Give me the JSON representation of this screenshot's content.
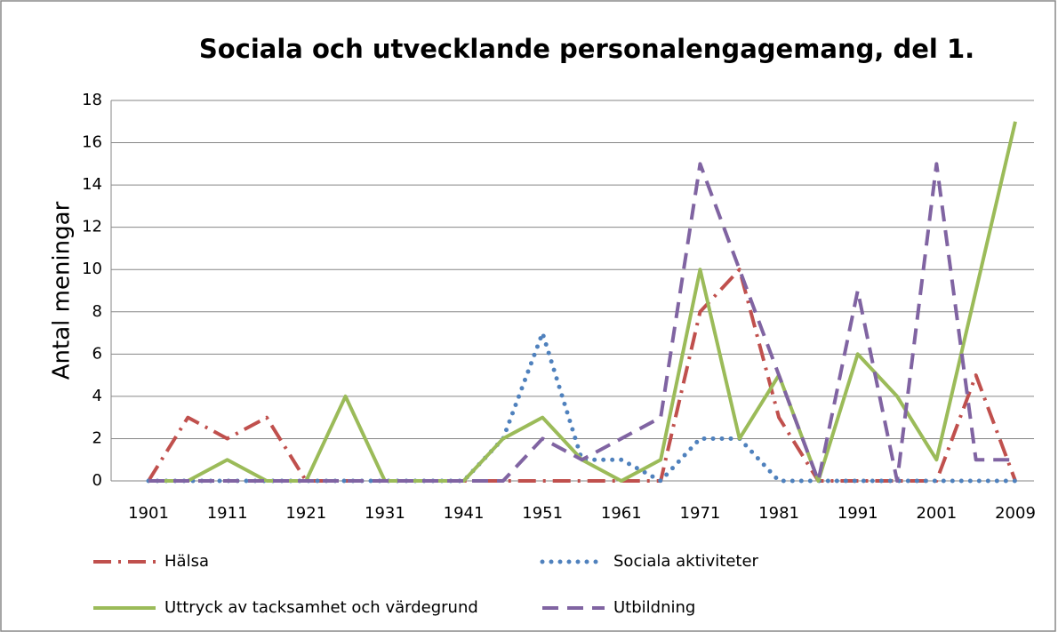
{
  "chart_data": {
    "type": "line",
    "title": "Sociala och utvecklande personalengagemang, del 1.",
    "y_label": "Antal meningar",
    "categories": [
      "1901",
      null,
      "1911",
      null,
      "1921",
      null,
      "1931",
      null,
      "1941",
      null,
      "1951",
      null,
      "1961",
      null,
      "1971",
      null,
      "1981",
      null,
      "1991",
      null,
      "2001",
      null,
      "2009"
    ],
    "series": [
      {
        "name": "Hälsa",
        "color": "#c0504d",
        "dash": "dash-dot",
        "values": [
          0,
          3,
          2,
          3,
          0,
          0,
          0,
          0,
          0,
          0,
          0,
          0,
          0,
          0,
          8,
          10,
          3,
          0,
          0,
          0,
          0,
          5,
          0
        ]
      },
      {
        "name": "Sociala aktiviteter",
        "color": "#4f81bd",
        "dash": "dot",
        "values": [
          0,
          0,
          0,
          0,
          0,
          0,
          0,
          0,
          0,
          2,
          7,
          1,
          1,
          0,
          2,
          2,
          0,
          0,
          0,
          0,
          0,
          0,
          0
        ]
      },
      {
        "name": "Uttryck av tacksamhet och värdegrund",
        "color": "#9bbb59",
        "dash": "solid",
        "values": [
          0,
          0,
          1,
          0,
          0,
          4,
          0,
          0,
          0,
          2,
          3,
          1,
          0,
          1,
          10,
          2,
          5,
          0,
          6,
          4,
          1,
          9,
          17
        ]
      },
      {
        "name": "Utbildning",
        "color": "#8064a2",
        "dash": "dash",
        "values": [
          0,
          0,
          0,
          0,
          0,
          0,
          0,
          0,
          0,
          0,
          2,
          1,
          2,
          3,
          15,
          10,
          5,
          0,
          9,
          0,
          15,
          1,
          1
        ]
      }
    ],
    "ylim": [
      0,
      18
    ],
    "yticks": [
      0,
      2,
      4,
      6,
      8,
      10,
      12,
      14,
      16,
      18
    ],
    "grid": true,
    "legend": "bottom"
  }
}
